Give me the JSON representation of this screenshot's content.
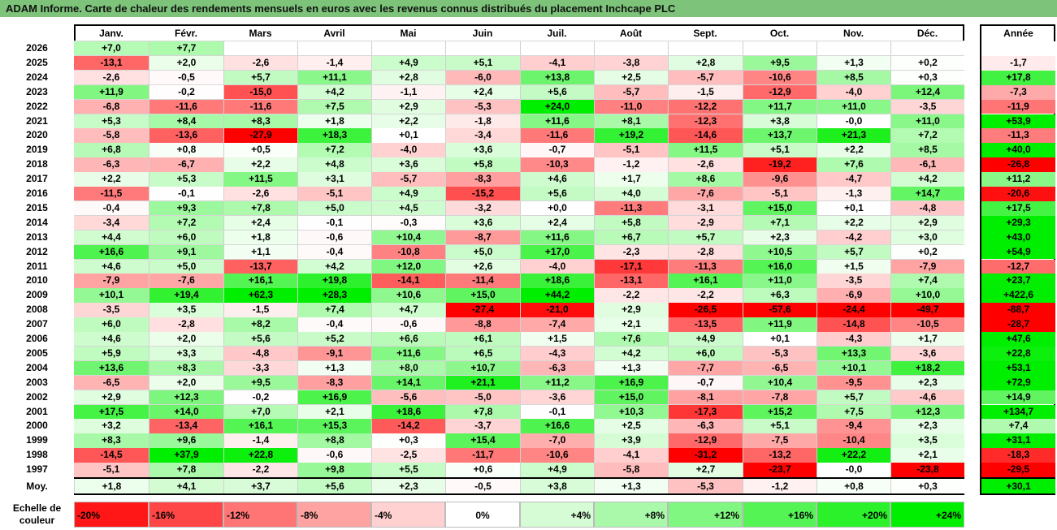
{
  "title": "ADAM Informe. Carte de chaleur des rendements mensuels en euros avec les revenus connus distribués du placement Inchcape PLC",
  "chart_data": {
    "type": "heatmap",
    "columns": [
      "Janv.",
      "Févr.",
      "Mars",
      "Avril",
      "Mai",
      "Juin",
      "Juil.",
      "Août",
      "Sept.",
      "Oct.",
      "Nov.",
      "Déc."
    ],
    "year_header": "Année",
    "rows": [
      {
        "year": "2026",
        "months": [
          "+7,0",
          "+7,7",
          "",
          "",
          "",
          "",
          "",
          "",
          "",
          "",
          "",
          ""
        ],
        "annual": ""
      },
      {
        "year": "2025",
        "months": [
          "-13,1",
          "+2,0",
          "-2,6",
          "-1,4",
          "+4,9",
          "+5,1",
          "-4,1",
          "-3,8",
          "+2,8",
          "+9,5",
          "+1,3",
          "+0,2"
        ],
        "annual": "-1,7"
      },
      {
        "year": "2024",
        "months": [
          "-2,6",
          "-0,5",
          "+5,7",
          "+11,1",
          "+2,8",
          "-6,0",
          "+13,8",
          "+2,5",
          "-5,7",
          "-10,6",
          "+8,5",
          "+0,3"
        ],
        "annual": "+17,8"
      },
      {
        "year": "2023",
        "months": [
          "+11,9",
          "-0,2",
          "-15,0",
          "+4,2",
          "-1,1",
          "+2,4",
          "+5,6",
          "-5,7",
          "-1,5",
          "-12,9",
          "-4,0",
          "+12,4"
        ],
        "annual": "-7,3"
      },
      {
        "year": "2022",
        "months": [
          "-6,8",
          "-11,6",
          "-11,6",
          "+7,5",
          "+2,9",
          "-5,3",
          "+24,0",
          "-11,0",
          "-12,2",
          "+11,7",
          "+11,0",
          "-3,5"
        ],
        "annual": "-11,9"
      },
      {
        "year": "2021",
        "months": [
          "+5,3",
          "+8,4",
          "+8,3",
          "+1,8",
          "+2,2",
          "-1,8",
          "+11,6",
          "+8,1",
          "-12,3",
          "+3,8",
          "-0,0",
          "+11,0"
        ],
        "annual": "+53,9"
      },
      {
        "year": "2020",
        "months": [
          "-5,8",
          "-13,6",
          "-27,9",
          "+18,3",
          "+0,1",
          "-3,4",
          "-11,6",
          "+19,2",
          "-14,6",
          "+13,7",
          "+21,3",
          "+7,2"
        ],
        "annual": "-11,3"
      },
      {
        "year": "2019",
        "months": [
          "+6,8",
          "+0,8",
          "+0,5",
          "+7,2",
          "-4,0",
          "+3,6",
          "-0,7",
          "-5,1",
          "+11,5",
          "+5,1",
          "+2,2",
          "+8,5"
        ],
        "annual": "+40,0"
      },
      {
        "year": "2018",
        "months": [
          "-6,3",
          "-6,7",
          "+2,2",
          "+4,8",
          "+3,6",
          "+5,8",
          "-10,3",
          "-1,2",
          "-2,6",
          "-19,2",
          "+7,6",
          "-6,1"
        ],
        "annual": "-26,8"
      },
      {
        "year": "2017",
        "months": [
          "+2,2",
          "+5,3",
          "+11,5",
          "+3,1",
          "-5,7",
          "-8,3",
          "+4,6",
          "+1,7",
          "+8,6",
          "-9,6",
          "-4,7",
          "+4,2"
        ],
        "annual": "+11,2"
      },
      {
        "year": "2016",
        "months": [
          "-11,5",
          "-0,1",
          "-2,6",
          "-5,1",
          "+4,9",
          "-15,2",
          "+5,6",
          "+4,0",
          "-7,6",
          "-5,1",
          "-1,3",
          "+14,7"
        ],
        "annual": "-20,6"
      },
      {
        "year": "2015",
        "months": [
          "-0,4",
          "+9,3",
          "+7,8",
          "+5,0",
          "+4,5",
          "-3,2",
          "+0,0",
          "-11,3",
          "-3,1",
          "+15,0",
          "+0,1",
          "-4,8"
        ],
        "annual": "+17,5"
      },
      {
        "year": "2014",
        "months": [
          "-3,4",
          "+7,2",
          "+2,4",
          "-0,1",
          "-0,3",
          "+3,6",
          "+2,4",
          "+5,8",
          "-2,9",
          "+7,1",
          "+2,2",
          "+2,9"
        ],
        "annual": "+29,3"
      },
      {
        "year": "2013",
        "months": [
          "+4,4",
          "+6,0",
          "+1,8",
          "-0,6",
          "+10,4",
          "-8,7",
          "+11,6",
          "+6,7",
          "+5,7",
          "+2,3",
          "-4,2",
          "+3,0"
        ],
        "annual": "+43,0"
      },
      {
        "year": "2012",
        "months": [
          "+16,6",
          "+9,1",
          "+1,1",
          "-0,4",
          "-10,8",
          "+5,0",
          "+17,0",
          "-2,3",
          "-2,8",
          "+10,5",
          "+5,7",
          "+0,2"
        ],
        "annual": "+54,9"
      },
      {
        "year": "2011",
        "months": [
          "+4,6",
          "+5,0",
          "-13,7",
          "+4,2",
          "+12,0",
          "+2,6",
          "-4,0",
          "-17,1",
          "-11,3",
          "+16,0",
          "+1,5",
          "-7,9"
        ],
        "annual": "-12,7"
      },
      {
        "year": "2010",
        "months": [
          "-7,9",
          "-7,6",
          "+16,1",
          "+19,8",
          "-14,1",
          "-11,4",
          "+18,6",
          "-13,1",
          "+16,1",
          "+11,0",
          "-3,5",
          "+7,4"
        ],
        "annual": "+23,7"
      },
      {
        "year": "2009",
        "months": [
          "+10,1",
          "+19,4",
          "+62,3",
          "+28,3",
          "+10,6",
          "+15,0",
          "+44,2",
          "-2,2",
          "-2,2",
          "+6,3",
          "-6,9",
          "+10,0"
        ],
        "annual": "+422,6"
      },
      {
        "year": "2008",
        "months": [
          "-3,5",
          "+3,5",
          "-1,5",
          "+7,4",
          "+4,7",
          "-27,4",
          "-21,0",
          "+2,9",
          "-26,5",
          "-57,6",
          "-24,4",
          "-49,7"
        ],
        "annual": "-88,7"
      },
      {
        "year": "2007",
        "months": [
          "+6,0",
          "-2,8",
          "+8,2",
          "-0,4",
          "-0,6",
          "-8,8",
          "-7,4",
          "+2,1",
          "-13,5",
          "+11,9",
          "-14,8",
          "-10,5"
        ],
        "annual": "-28,7"
      },
      {
        "year": "2006",
        "months": [
          "+4,6",
          "+2,0",
          "+5,6",
          "+5,2",
          "+6,6",
          "+6,1",
          "+1,5",
          "+7,6",
          "+4,9",
          "+0,1",
          "-4,3",
          "+1,7"
        ],
        "annual": "+47,6"
      },
      {
        "year": "2005",
        "months": [
          "+5,9",
          "+3,3",
          "-4,8",
          "-9,1",
          "+11,6",
          "+6,5",
          "-4,3",
          "+4,2",
          "+6,0",
          "-5,3",
          "+13,3",
          "-3,6"
        ],
        "annual": "+22,8"
      },
      {
        "year": "2004",
        "months": [
          "+13,6",
          "+8,3",
          "-3,3",
          "+1,3",
          "+8,0",
          "+10,7",
          "-6,3",
          "+1,3",
          "-7,7",
          "-6,5",
          "+10,1",
          "+18,2"
        ],
        "annual": "+53,1"
      },
      {
        "year": "2003",
        "months": [
          "-6,5",
          "+2,0",
          "+9,5",
          "-8,3",
          "+14,1",
          "+21,1",
          "+11,2",
          "+16,9",
          "-0,7",
          "+10,4",
          "-9,5",
          "+2,3"
        ],
        "annual": "+72,9"
      },
      {
        "year": "2002",
        "months": [
          "+2,9",
          "+12,3",
          "-0,2",
          "+16,9",
          "-5,6",
          "-5,0",
          "-3,6",
          "+15,0",
          "-8,1",
          "-7,8",
          "+5,7",
          "-4,6"
        ],
        "annual": "+14,9"
      },
      {
        "year": "2001",
        "months": [
          "+17,5",
          "+14,0",
          "+7,0",
          "+2,1",
          "+18,6",
          "+7,8",
          "-0,1",
          "+10,3",
          "-17,3",
          "+15,2",
          "+7,5",
          "+12,3"
        ],
        "annual": "+134,7"
      },
      {
        "year": "2000",
        "months": [
          "+3,2",
          "-13,4",
          "+16,1",
          "+15,3",
          "-14,2",
          "-3,7",
          "+16,6",
          "+2,5",
          "-6,3",
          "+5,1",
          "-9,4",
          "+2,3"
        ],
        "annual": "+7,4"
      },
      {
        "year": "1999",
        "months": [
          "+8,3",
          "+9,6",
          "-1,4",
          "+8,8",
          "+0,3",
          "+15,4",
          "-7,0",
          "+3,9",
          "-12,9",
          "-7,5",
          "-10,4",
          "+3,5"
        ],
        "annual": "+31,1"
      },
      {
        "year": "1998",
        "months": [
          "-14,5",
          "+37,9",
          "+22,8",
          "-0,6",
          "-2,5",
          "-11,7",
          "-10,6",
          "-4,1",
          "-31,2",
          "-13,2",
          "+22,2",
          "+2,1"
        ],
        "annual": "-18,3"
      },
      {
        "year": "1997",
        "months": [
          "-5,1",
          "+7,8",
          "-2,2",
          "+9,8",
          "+5,5",
          "+0,6",
          "+4,9",
          "-5,8",
          "+2,7",
          "-23,7",
          "-0,0",
          "-23,8"
        ],
        "annual": "-29,5"
      }
    ],
    "average": {
      "label": "Moy.",
      "months": [
        "+1,8",
        "+4,1",
        "+3,7",
        "+5,6",
        "+2,3",
        "-0,5",
        "+3,8",
        "+1,3",
        "-5,3",
        "-1,2",
        "+0,8",
        "+0,3"
      ],
      "annual": "+30,1"
    },
    "legend": {
      "label_line1": "Echelle de",
      "label_line2": "couleur",
      "items": [
        {
          "label": "-20%",
          "value": -20
        },
        {
          "label": "-16%",
          "value": -16
        },
        {
          "label": "-12%",
          "value": -12
        },
        {
          "label": "-8%",
          "value": -8
        },
        {
          "label": "-4%",
          "value": -4
        },
        {
          "label": "0%",
          "value": 0
        },
        {
          "label": "+4%",
          "value": 4
        },
        {
          "label": "+8%",
          "value": 8
        },
        {
          "label": "+12%",
          "value": 12
        },
        {
          "label": "+16%",
          "value": 16
        },
        {
          "label": "+20%",
          "value": 20
        },
        {
          "label": "+24%",
          "value": 24
        }
      ]
    },
    "colors": {
      "negative": "#ff0000",
      "neutral": "#ffffff",
      "positive": "#00ee00",
      "title_bg": "#7dc47a"
    }
  }
}
